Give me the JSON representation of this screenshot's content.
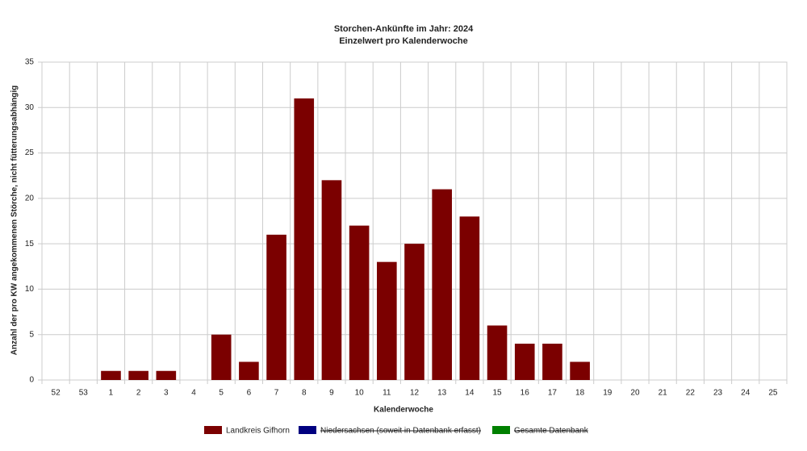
{
  "chart_data": {
    "type": "bar",
    "title": "Storchen-Ankünfte im Jahr: 2024",
    "subtitle": "Einzelwert pro Kalenderwoche",
    "x_label": "Kalenderwoche",
    "y_label": "Anzahl der pro KW angekommenen Störche, nicht fütterungsabhängig",
    "categories": [
      "52",
      "53",
      "1",
      "2",
      "3",
      "4",
      "5",
      "6",
      "7",
      "8",
      "9",
      "10",
      "11",
      "12",
      "13",
      "14",
      "15",
      "16",
      "17",
      "18",
      "19",
      "20",
      "21",
      "22",
      "23",
      "24",
      "25"
    ],
    "series": [
      {
        "name": "Landkreis Gifhorn",
        "color": "#7b0000",
        "values": [
          0,
          0,
          1,
          1,
          1,
          0,
          5,
          2,
          16,
          31,
          22,
          17,
          13,
          15,
          21,
          18,
          6,
          4,
          4,
          2,
          0,
          0,
          0,
          0,
          0,
          0,
          0
        ]
      },
      {
        "name": "Niedersachsen (soweit in Datenbank erfasst)",
        "color": "#000080",
        "hidden": true,
        "values": [
          null,
          null,
          null,
          null,
          null,
          null,
          null,
          null,
          null,
          null,
          null,
          null,
          null,
          null,
          null,
          null,
          null,
          null,
          null,
          null,
          null,
          null,
          null,
          null,
          null,
          null,
          null
        ]
      },
      {
        "name": "Gesamte Datenbank",
        "color": "#008000",
        "hidden": true,
        "values": [
          null,
          null,
          null,
          null,
          null,
          null,
          null,
          null,
          null,
          null,
          null,
          null,
          null,
          null,
          null,
          null,
          null,
          null,
          null,
          null,
          null,
          null,
          null,
          null,
          null,
          null,
          null
        ]
      }
    ],
    "ylim": [
      0,
      35
    ],
    "yticks": [
      0,
      5,
      10,
      15,
      20,
      25,
      30,
      35
    ],
    "grid": true
  }
}
